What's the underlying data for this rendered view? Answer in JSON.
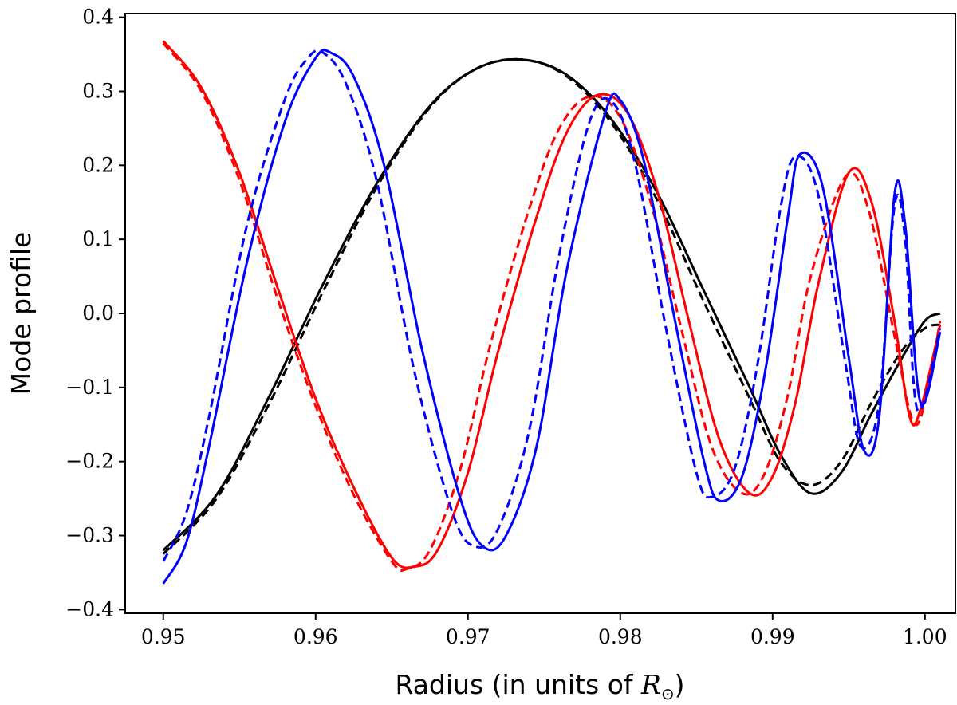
{
  "chart_data": {
    "type": "line",
    "title": "",
    "xlabel": "Radius (in units of ",
    "xlabel_symbol": "R",
    "xlabel_subscript": "⊙",
    "xlabel_close": ")",
    "ylabel": "Mode profile",
    "xlim": [
      0.9475,
      1.002
    ],
    "ylim": [
      -0.405,
      0.405
    ],
    "xticks": [
      0.95,
      0.96,
      0.97,
      0.98,
      0.99,
      1.0
    ],
    "xtick_labels": [
      "0.95",
      "0.96",
      "0.97",
      "0.98",
      "0.99",
      "1.00"
    ],
    "yticks": [
      -0.4,
      -0.3,
      -0.2,
      -0.1,
      0.0,
      0.1,
      0.2,
      0.3,
      0.4
    ],
    "ytick_labels": [
      "−0.4",
      "−0.3",
      "−0.2",
      "−0.1",
      "0.0",
      "0.1",
      "0.2",
      "0.3",
      "0.4"
    ],
    "grid": false,
    "legend": "none",
    "series": [
      {
        "color": "#000000",
        "style": "solid",
        "points": [
          [
            0.95,
            -0.32
          ],
          [
            0.9535,
            -0.245
          ],
          [
            0.957,
            -0.11
          ],
          [
            0.9605,
            0.04
          ],
          [
            0.964,
            0.175
          ],
          [
            0.9675,
            0.28
          ],
          [
            0.9705,
            0.33
          ],
          [
            0.9735,
            0.343
          ],
          [
            0.9765,
            0.322
          ],
          [
            0.9795,
            0.26
          ],
          [
            0.9825,
            0.16
          ],
          [
            0.9855,
            0.03
          ],
          [
            0.9885,
            -0.1
          ],
          [
            0.9905,
            -0.19
          ],
          [
            0.9925,
            -0.243
          ],
          [
            0.9945,
            -0.215
          ],
          [
            0.9965,
            -0.135
          ],
          [
            0.9985,
            -0.06
          ],
          [
            1.0,
            -0.01
          ],
          [
            1.001,
            0.0
          ]
        ]
      },
      {
        "color": "#000000",
        "style": "dashed",
        "points": [
          [
            0.95,
            -0.325
          ],
          [
            0.9535,
            -0.25
          ],
          [
            0.957,
            -0.12
          ],
          [
            0.9605,
            0.03
          ],
          [
            0.964,
            0.17
          ],
          [
            0.9675,
            0.278
          ],
          [
            0.9705,
            0.33
          ],
          [
            0.9735,
            0.343
          ],
          [
            0.9765,
            0.32
          ],
          [
            0.9795,
            0.255
          ],
          [
            0.9825,
            0.15
          ],
          [
            0.9855,
            0.015
          ],
          [
            0.9885,
            -0.115
          ],
          [
            0.9905,
            -0.2
          ],
          [
            0.9925,
            -0.232
          ],
          [
            0.9945,
            -0.2
          ],
          [
            0.9965,
            -0.12
          ],
          [
            0.9985,
            -0.05
          ],
          [
            1.0,
            -0.02
          ],
          [
            1.001,
            -0.015
          ]
        ]
      },
      {
        "color": "#ff0000",
        "style": "solid",
        "points": [
          [
            0.95,
            0.368
          ],
          [
            0.9525,
            0.305
          ],
          [
            0.955,
            0.19
          ],
          [
            0.9575,
            0.035
          ],
          [
            0.96,
            -0.115
          ],
          [
            0.9625,
            -0.235
          ],
          [
            0.965,
            -0.33
          ],
          [
            0.9665,
            -0.342
          ],
          [
            0.968,
            -0.32
          ],
          [
            0.97,
            -0.215
          ],
          [
            0.972,
            -0.05
          ],
          [
            0.9745,
            0.13
          ],
          [
            0.9765,
            0.245
          ],
          [
            0.9785,
            0.295
          ],
          [
            0.9805,
            0.27
          ],
          [
            0.9825,
            0.16
          ],
          [
            0.9845,
            -0.01
          ],
          [
            0.9865,
            -0.17
          ],
          [
            0.9885,
            -0.243
          ],
          [
            0.99,
            -0.22
          ],
          [
            0.9915,
            -0.12
          ],
          [
            0.993,
            0.04
          ],
          [
            0.995,
            0.19
          ],
          [
            0.9965,
            0.15
          ],
          [
            0.998,
            -0.01
          ],
          [
            0.999,
            -0.14
          ],
          [
            0.9997,
            -0.13
          ],
          [
            1.001,
            -0.015
          ]
        ]
      },
      {
        "color": "#ff0000",
        "style": "dashed",
        "points": [
          [
            0.95,
            0.365
          ],
          [
            0.9525,
            0.3
          ],
          [
            0.955,
            0.18
          ],
          [
            0.9575,
            0.02
          ],
          [
            0.96,
            -0.125
          ],
          [
            0.9625,
            -0.245
          ],
          [
            0.965,
            -0.335
          ],
          [
            0.966,
            -0.345
          ],
          [
            0.9675,
            -0.32
          ],
          [
            0.9695,
            -0.21
          ],
          [
            0.9715,
            -0.04
          ],
          [
            0.974,
            0.14
          ],
          [
            0.976,
            0.25
          ],
          [
            0.978,
            0.293
          ],
          [
            0.98,
            0.265
          ],
          [
            0.982,
            0.15
          ],
          [
            0.984,
            -0.02
          ],
          [
            0.986,
            -0.18
          ],
          [
            0.988,
            -0.243
          ],
          [
            0.9895,
            -0.215
          ],
          [
            0.991,
            -0.11
          ],
          [
            0.9925,
            0.05
          ],
          [
            0.9948,
            0.185
          ],
          [
            0.9963,
            0.14
          ],
          [
            0.998,
            -0.03
          ],
          [
            0.9992,
            -0.145
          ],
          [
            1.0,
            -0.12
          ],
          [
            1.001,
            -0.01
          ]
        ]
      },
      {
        "color": "#0000ff",
        "style": "solid",
        "points": [
          [
            0.95,
            -0.365
          ],
          [
            0.9515,
            -0.31
          ],
          [
            0.953,
            -0.18
          ],
          [
            0.9555,
            0.07
          ],
          [
            0.958,
            0.26
          ],
          [
            0.96,
            0.345
          ],
          [
            0.961,
            0.352
          ],
          [
            0.9625,
            0.32
          ],
          [
            0.9645,
            0.2
          ],
          [
            0.967,
            -0.05
          ],
          [
            0.9695,
            -0.25
          ],
          [
            0.971,
            -0.315
          ],
          [
            0.9725,
            -0.3
          ],
          [
            0.9745,
            -0.18
          ],
          [
            0.9765,
            0.06
          ],
          [
            0.979,
            0.27
          ],
          [
            0.98,
            0.288
          ],
          [
            0.9815,
            0.21
          ],
          [
            0.9835,
            0.0
          ],
          [
            0.9855,
            -0.2
          ],
          [
            0.9865,
            -0.253
          ],
          [
            0.988,
            -0.22
          ],
          [
            0.9895,
            -0.08
          ],
          [
            0.991,
            0.13
          ],
          [
            0.9918,
            0.215
          ],
          [
            0.9933,
            0.17
          ],
          [
            0.995,
            -0.06
          ],
          [
            0.996,
            -0.185
          ],
          [
            0.997,
            -0.14
          ],
          [
            0.998,
            0.16
          ],
          [
            0.9987,
            0.12
          ],
          [
            0.9997,
            -0.12
          ],
          [
            1.001,
            -0.025
          ]
        ]
      },
      {
        "color": "#0000ff",
        "style": "dashed",
        "points": [
          [
            0.95,
            -0.335
          ],
          [
            0.9515,
            -0.27
          ],
          [
            0.953,
            -0.14
          ],
          [
            0.9555,
            0.12
          ],
          [
            0.958,
            0.29
          ],
          [
            0.9595,
            0.345
          ],
          [
            0.9605,
            0.352
          ],
          [
            0.962,
            0.31
          ],
          [
            0.964,
            0.18
          ],
          [
            0.9665,
            -0.08
          ],
          [
            0.969,
            -0.27
          ],
          [
            0.9705,
            -0.315
          ],
          [
            0.972,
            -0.29
          ],
          [
            0.974,
            -0.16
          ],
          [
            0.976,
            0.08
          ],
          [
            0.978,
            0.26
          ],
          [
            0.9795,
            0.285
          ],
          [
            0.981,
            0.2
          ],
          [
            0.983,
            -0.02
          ],
          [
            0.985,
            -0.215
          ],
          [
            0.986,
            -0.248
          ],
          [
            0.9875,
            -0.21
          ],
          [
            0.989,
            -0.07
          ],
          [
            0.9905,
            0.14
          ],
          [
            0.9915,
            0.212
          ],
          [
            0.993,
            0.16
          ],
          [
            0.9948,
            -0.07
          ],
          [
            0.9958,
            -0.18
          ],
          [
            0.997,
            -0.12
          ],
          [
            0.998,
            0.145
          ],
          [
            0.9987,
            0.1
          ],
          [
            0.9995,
            -0.13
          ],
          [
            1.001,
            -0.02
          ]
        ]
      }
    ]
  }
}
